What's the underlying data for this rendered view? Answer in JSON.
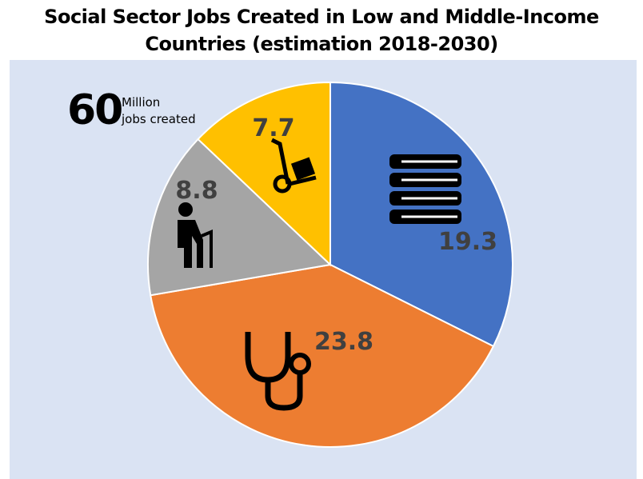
{
  "chart_data": {
    "type": "pie",
    "title": "Social Sector Jobs Created in Low and Middle-Income Countries (estimation 2018-2030)",
    "title_lines": [
      "Social Sector Jobs Created in Low and Middle-Income",
      "Countries (estimation 2018-2030)"
    ],
    "start_angle": "top, clockwise",
    "slices": [
      {
        "label": "19.3",
        "value": 19.3,
        "color": "#4472c4",
        "icon": "books-icon"
      },
      {
        "label": "23.8",
        "value": 23.8,
        "color": "#ed7d31",
        "icon": "stethoscope-icon"
      },
      {
        "label": "8.8",
        "value": 8.8,
        "color": "#a5a5a5",
        "icon": "elderly-person-icon"
      },
      {
        "label": "7.7",
        "value": 7.7,
        "color": "#ffc000",
        "icon": "hand-truck-icon"
      }
    ],
    "annotation": {
      "number": "60",
      "line1": "Million",
      "line2": "jobs created"
    },
    "background": "#dae3f3",
    "label_color": "#404040"
  }
}
